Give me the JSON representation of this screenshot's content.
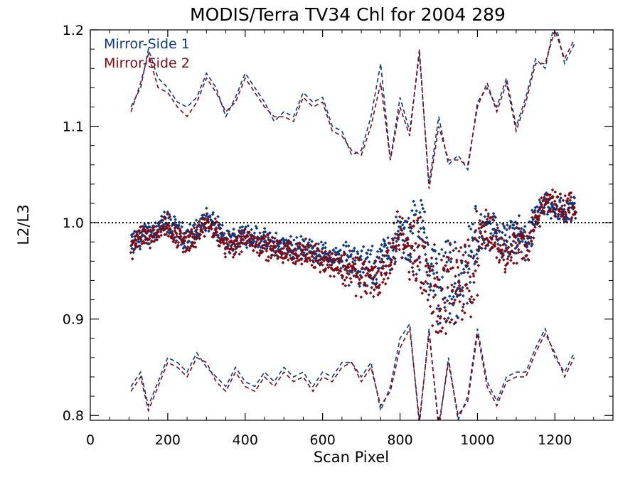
{
  "chart_data": {
    "type": "scatter",
    "title": "MODIS/Terra TV34 Chl for 2004 289",
    "xlabel": "Scan Pixel",
    "ylabel": "L2/L3",
    "xlim": [
      0,
      1350
    ],
    "ylim": [
      0.795,
      1.2
    ],
    "xticks": [
      0,
      200,
      400,
      600,
      800,
      1000,
      1200
    ],
    "yticks": [
      0.8,
      0.9,
      1.0,
      1.1,
      1.2
    ],
    "ytick_labels": [
      "0.8",
      "0.9",
      "1.0",
      "1.1",
      "1.2"
    ],
    "reference_line": 1.0,
    "legend_position": "top-left",
    "grid": false,
    "colors": {
      "mirror_side_1": "#0b3a80",
      "mirror_side_2": "#7d0a14"
    },
    "series": [
      {
        "name": "Mirror-Side 1",
        "color": "#0b3a80",
        "mean_x": [
          105,
          130,
          150,
          175,
          200,
          225,
          250,
          275,
          300,
          325,
          350,
          375,
          400,
          425,
          450,
          475,
          500,
          525,
          550,
          575,
          600,
          625,
          650,
          675,
          700,
          725,
          750,
          775,
          800,
          825,
          850,
          875,
          900,
          925,
          950,
          975,
          1000,
          1025,
          1050,
          1075,
          1100,
          1125,
          1150,
          1175,
          1200,
          1225,
          1250
        ],
        "mean": [
          0.975,
          0.985,
          0.99,
          0.995,
          1.0,
          0.99,
          0.985,
          0.99,
          1.005,
          0.995,
          0.98,
          0.982,
          0.99,
          0.985,
          0.98,
          0.978,
          0.975,
          0.972,
          0.975,
          0.97,
          0.968,
          0.965,
          0.96,
          0.962,
          0.955,
          0.95,
          0.96,
          0.97,
          0.99,
          0.975,
          0.995,
          0.96,
          0.93,
          0.95,
          0.925,
          0.955,
          0.985,
          0.99,
          0.985,
          0.975,
          0.985,
          0.98,
          1.0,
          1.02,
          1.015,
          1.01,
          1.015
        ],
        "upper": [
          1.12,
          1.14,
          1.18,
          1.15,
          1.14,
          1.125,
          1.12,
          1.13,
          1.155,
          1.14,
          1.11,
          1.13,
          1.155,
          1.14,
          1.125,
          1.105,
          1.115,
          1.11,
          1.135,
          1.125,
          1.13,
          1.1,
          1.095,
          1.07,
          1.075,
          1.11,
          1.165,
          1.065,
          1.13,
          1.095,
          1.175,
          1.04,
          1.11,
          1.06,
          1.07,
          1.055,
          1.125,
          1.14,
          1.12,
          1.15,
          1.1,
          1.13,
          1.17,
          1.16,
          1.21,
          1.165,
          1.185
        ],
        "lower": [
          0.83,
          0.845,
          0.81,
          0.835,
          0.86,
          0.855,
          0.845,
          0.865,
          0.85,
          0.84,
          0.83,
          0.85,
          0.835,
          0.83,
          0.845,
          0.835,
          0.85,
          0.84,
          0.845,
          0.83,
          0.845,
          0.84,
          0.855,
          0.855,
          0.84,
          0.855,
          0.805,
          0.83,
          0.88,
          0.895,
          0.79,
          0.89,
          0.785,
          0.86,
          0.795,
          0.82,
          0.89,
          0.835,
          0.815,
          0.84,
          0.845,
          0.845,
          0.87,
          0.89,
          0.86,
          0.845,
          0.865
        ]
      },
      {
        "name": "Mirror-Side 2",
        "color": "#7d0a14",
        "mean_x": [
          105,
          130,
          150,
          175,
          200,
          225,
          250,
          275,
          300,
          325,
          350,
          375,
          400,
          425,
          450,
          475,
          500,
          525,
          550,
          575,
          600,
          625,
          650,
          675,
          700,
          725,
          750,
          775,
          800,
          825,
          850,
          875,
          900,
          925,
          950,
          975,
          1000,
          1025,
          1050,
          1075,
          1100,
          1125,
          1150,
          1175,
          1200,
          1225,
          1250
        ],
        "mean": [
          0.972,
          0.99,
          0.985,
          0.993,
          0.997,
          0.985,
          0.98,
          0.985,
          1.0,
          0.99,
          0.975,
          0.978,
          0.985,
          0.98,
          0.976,
          0.972,
          0.97,
          0.968,
          0.97,
          0.965,
          0.962,
          0.958,
          0.955,
          0.952,
          0.945,
          0.94,
          0.945,
          0.965,
          0.995,
          0.96,
          0.98,
          0.945,
          0.915,
          0.935,
          0.94,
          0.935,
          0.975,
          0.995,
          0.98,
          0.97,
          0.98,
          0.975,
          1.0,
          1.02,
          1.02,
          1.015,
          1.02
        ],
        "upper": [
          1.115,
          1.145,
          1.175,
          1.14,
          1.135,
          1.12,
          1.11,
          1.125,
          1.15,
          1.135,
          1.115,
          1.125,
          1.15,
          1.135,
          1.12,
          1.11,
          1.11,
          1.105,
          1.13,
          1.12,
          1.125,
          1.095,
          1.09,
          1.075,
          1.07,
          1.1,
          1.145,
          1.065,
          1.12,
          1.09,
          1.18,
          1.035,
          1.1,
          1.065,
          1.065,
          1.06,
          1.12,
          1.145,
          1.115,
          1.145,
          1.095,
          1.125,
          1.165,
          1.165,
          1.2,
          1.17,
          1.19
        ],
        "lower": [
          0.825,
          0.84,
          0.805,
          0.83,
          0.855,
          0.85,
          0.84,
          0.86,
          0.855,
          0.835,
          0.825,
          0.845,
          0.83,
          0.825,
          0.84,
          0.83,
          0.845,
          0.835,
          0.84,
          0.825,
          0.84,
          0.835,
          0.85,
          0.855,
          0.835,
          0.85,
          0.81,
          0.825,
          0.87,
          0.89,
          0.795,
          0.885,
          0.79,
          0.855,
          0.8,
          0.815,
          0.885,
          0.83,
          0.81,
          0.835,
          0.84,
          0.84,
          0.865,
          0.885,
          0.865,
          0.84,
          0.86
        ]
      }
    ]
  },
  "legend": {
    "items": [
      {
        "label": "Mirror-Side 1",
        "color": "#0b3a80"
      },
      {
        "label": "Mirror-Side 2",
        "color": "#7d0a14"
      }
    ]
  }
}
